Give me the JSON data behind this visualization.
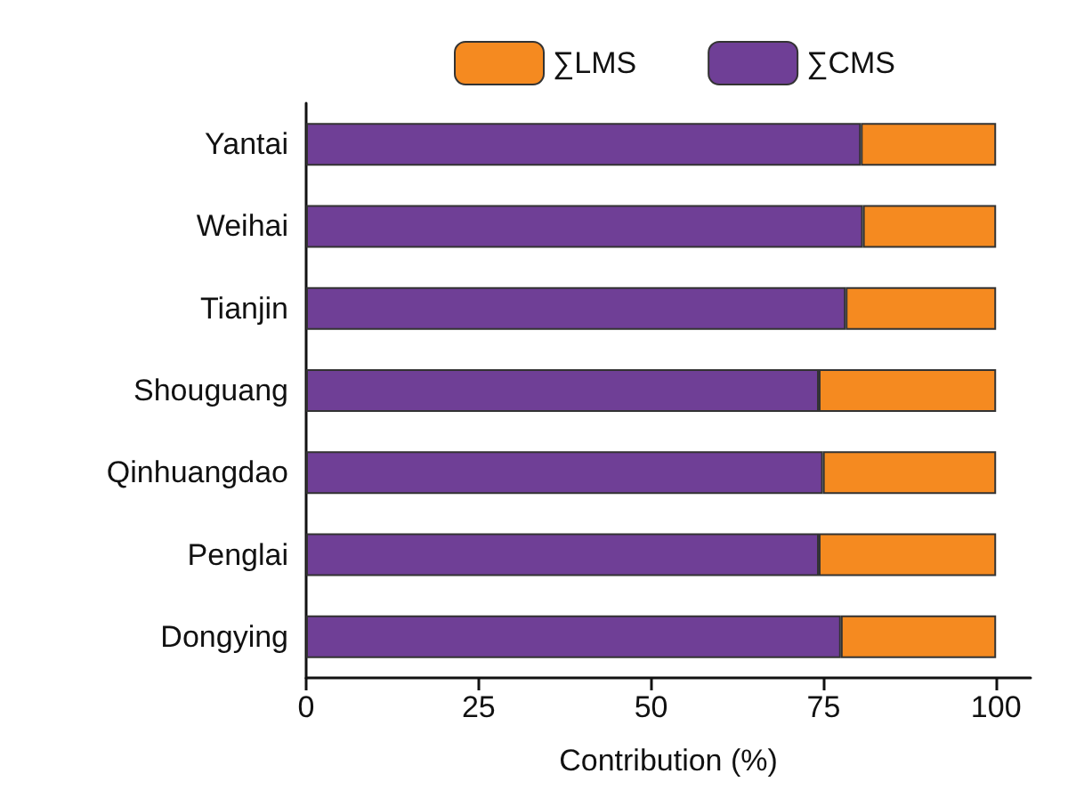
{
  "chart_data": {
    "type": "bar",
    "orientation": "horizontal",
    "stacked": true,
    "categories": [
      "Yantai",
      "Weihai",
      "Tianjin",
      "Shouguang",
      "Qinhuangdao",
      "Penglai",
      "Dongying"
    ],
    "series": [
      {
        "name": "∑CMS",
        "color": "#6f3f96",
        "values": [
          80.4,
          80.7,
          78.2,
          74.3,
          74.9,
          74.3,
          77.5
        ]
      },
      {
        "name": "∑LMS",
        "color": "#f58a20",
        "values": [
          19.6,
          19.3,
          21.8,
          25.7,
          25.1,
          25.7,
          22.5
        ]
      }
    ],
    "xlabel": "Contribution (%)",
    "xlim": [
      0,
      105
    ],
    "xticks": [
      0,
      25,
      50,
      75,
      100
    ],
    "grid": false,
    "legend": "top"
  }
}
